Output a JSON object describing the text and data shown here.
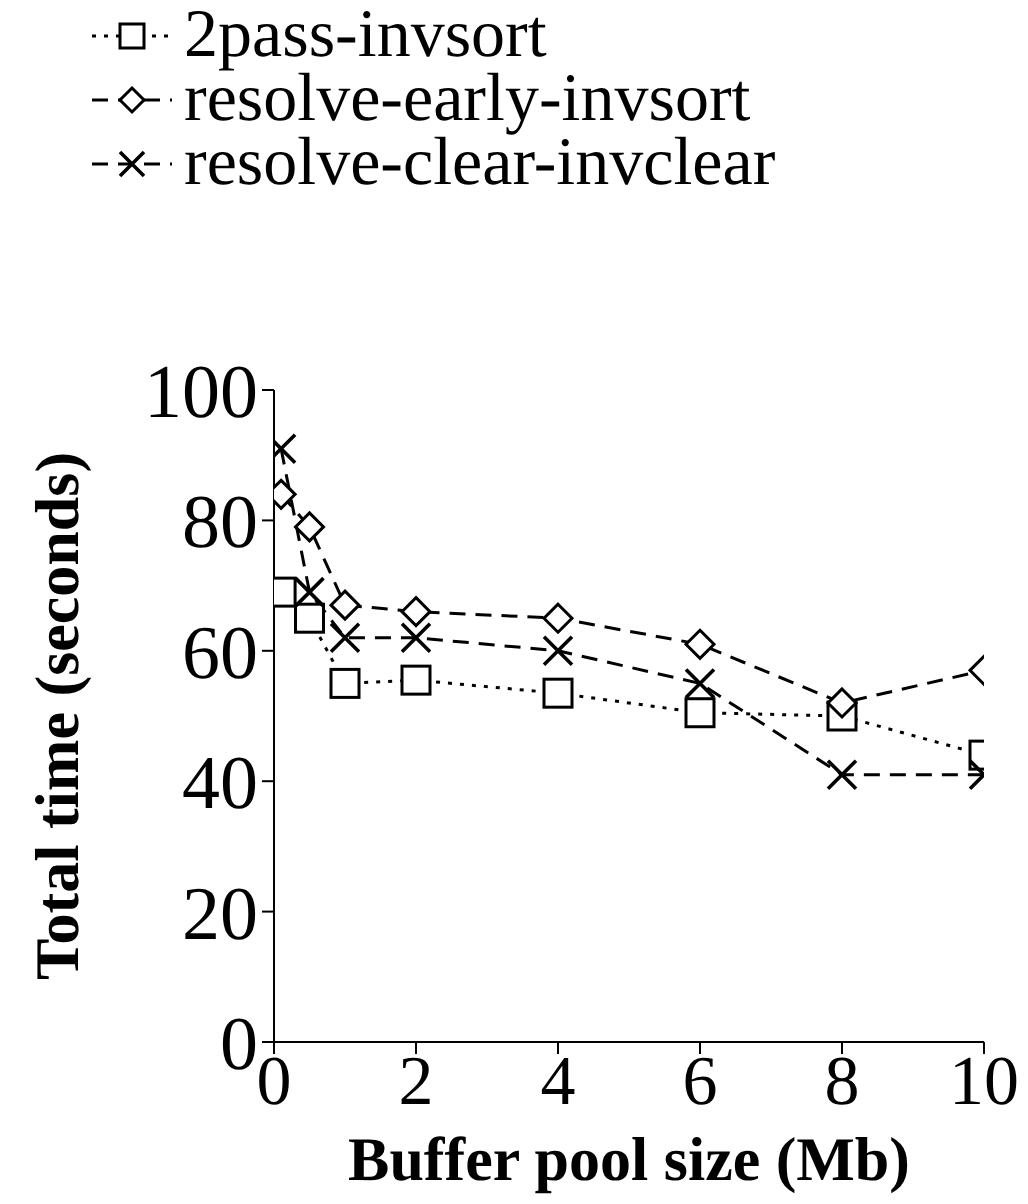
{
  "chart_data": {
    "type": "line",
    "xlabel": "Buffer pool size (Mb)",
    "ylabel": "Total time (seconds)",
    "x": [
      0.1,
      0.5,
      1,
      2,
      4,
      6,
      8,
      10
    ],
    "series": [
      {
        "name": "2pass-invsort",
        "color": "#000000",
        "marker": "square",
        "line_style": "dotted",
        "values": [
          69,
          65,
          55,
          55.5,
          53.5,
          50.5,
          50,
          44
        ]
      },
      {
        "name": "resolve-early-invsort",
        "color": "#000000",
        "marker": "diamond",
        "line_style": "dashed",
        "values": [
          84,
          79,
          67,
          66,
          65,
          61,
          52,
          57
        ]
      },
      {
        "name": "resolve-clear-invclear",
        "color": "#000000",
        "marker": "cross",
        "line_style": "dashed",
        "values": [
          91,
          69,
          62,
          62,
          60,
          55,
          41,
          41
        ]
      }
    ],
    "xlim": [
      0,
      10
    ],
    "xticks": [
      0,
      2,
      4,
      6,
      8,
      10
    ],
    "ylim": [
      0,
      100
    ],
    "yticks": [
      0,
      20,
      40,
      60,
      80,
      100
    ],
    "grid": false,
    "legend": "top left"
  }
}
